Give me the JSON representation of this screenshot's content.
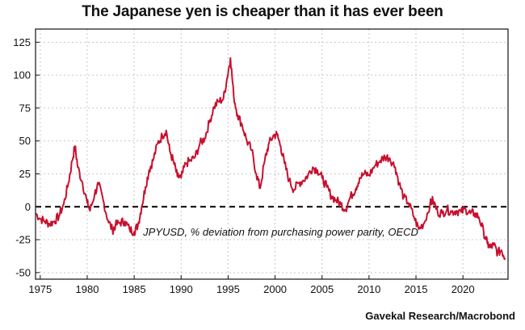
{
  "chart_data": {
    "type": "line",
    "title": "The Japanese yen is cheaper than it has ever been",
    "series_label": "JPYUSD, % deviation from purchasing power parity, OECD",
    "source": "Gavekal Research/Macrobond",
    "xlim": [
      1974.5,
      2024.8
    ],
    "ylim": [
      -55,
      135
    ],
    "xticks": [
      1975,
      1980,
      1985,
      1990,
      1995,
      2000,
      2005,
      2010,
      2015,
      2020
    ],
    "yticks": [
      125,
      100,
      75,
      50,
      25,
      0,
      -25,
      -50
    ],
    "reference_line": 0,
    "grid": true,
    "colors": {
      "series": "#c8102e",
      "reference": "#000000",
      "grid": "#c8c8c8"
    },
    "points": [
      [
        1974.5,
        -5
      ],
      [
        1975.0,
        -9
      ],
      [
        1975.5,
        -11
      ],
      [
        1976.0,
        -13
      ],
      [
        1976.5,
        -11
      ],
      [
        1977.0,
        -7
      ],
      [
        1977.5,
        2
      ],
      [
        1978.0,
        18
      ],
      [
        1978.4,
        35
      ],
      [
        1978.7,
        46
      ],
      [
        1979.0,
        30
      ],
      [
        1979.5,
        18
      ],
      [
        1980.0,
        3
      ],
      [
        1980.3,
        -3
      ],
      [
        1980.8,
        10
      ],
      [
        1981.2,
        17
      ],
      [
        1981.7,
        5
      ],
      [
        1982.2,
        -10
      ],
      [
        1982.7,
        -18
      ],
      [
        1983.0,
        -14
      ],
      [
        1983.5,
        -12
      ],
      [
        1984.0,
        -11
      ],
      [
        1984.5,
        -17
      ],
      [
        1985.0,
        -19
      ],
      [
        1985.4,
        -14
      ],
      [
        1985.8,
        0
      ],
      [
        1986.2,
        15
      ],
      [
        1986.6,
        28
      ],
      [
        1987.0,
        35
      ],
      [
        1987.5,
        48
      ],
      [
        1988.0,
        54
      ],
      [
        1988.4,
        58
      ],
      [
        1988.8,
        42
      ],
      [
        1989.2,
        34
      ],
      [
        1989.6,
        23
      ],
      [
        1990.0,
        22
      ],
      [
        1990.5,
        33
      ],
      [
        1991.0,
        35
      ],
      [
        1991.5,
        38
      ],
      [
        1992.0,
        48
      ],
      [
        1992.5,
        52
      ],
      [
        1993.0,
        64
      ],
      [
        1993.5,
        76
      ],
      [
        1994.0,
        80
      ],
      [
        1994.5,
        82
      ],
      [
        1994.9,
        98
      ],
      [
        1995.25,
        113
      ],
      [
        1995.6,
        84
      ],
      [
        1996.0,
        70
      ],
      [
        1996.5,
        62
      ],
      [
        1997.0,
        50
      ],
      [
        1997.5,
        43
      ],
      [
        1998.0,
        25
      ],
      [
        1998.4,
        14
      ],
      [
        1998.9,
        35
      ],
      [
        1999.3,
        47
      ],
      [
        1999.8,
        54
      ],
      [
        2000.2,
        55
      ],
      [
        2000.6,
        46
      ],
      [
        2001.0,
        33
      ],
      [
        2001.5,
        20
      ],
      [
        2002.0,
        13
      ],
      [
        2002.5,
        18
      ],
      [
        2003.0,
        20
      ],
      [
        2003.5,
        24
      ],
      [
        2004.0,
        30
      ],
      [
        2004.5,
        28
      ],
      [
        2005.0,
        22
      ],
      [
        2005.5,
        15
      ],
      [
        2006.0,
        8
      ],
      [
        2006.5,
        5
      ],
      [
        2007.0,
        2
      ],
      [
        2007.5,
        -2
      ],
      [
        2008.0,
        7
      ],
      [
        2008.6,
        14
      ],
      [
        2009.0,
        22
      ],
      [
        2009.5,
        25
      ],
      [
        2010.0,
        24
      ],
      [
        2010.6,
        31
      ],
      [
        2011.2,
        35
      ],
      [
        2011.7,
        38
      ],
      [
        2012.2,
        37
      ],
      [
        2012.8,
        30
      ],
      [
        2013.2,
        18
      ],
      [
        2013.7,
        7
      ],
      [
        2014.2,
        3
      ],
      [
        2014.8,
        -8
      ],
      [
        2015.3,
        -17
      ],
      [
        2015.9,
        -12
      ],
      [
        2016.5,
        2
      ],
      [
        2016.8,
        5
      ],
      [
        2017.3,
        -4
      ],
      [
        2017.8,
        -5
      ],
      [
        2018.3,
        -2
      ],
      [
        2018.8,
        -4
      ],
      [
        2019.3,
        -3
      ],
      [
        2019.8,
        -4
      ],
      [
        2020.3,
        -2
      ],
      [
        2020.8,
        -5
      ],
      [
        2021.2,
        -5
      ],
      [
        2021.7,
        -8
      ],
      [
        2022.2,
        -19
      ],
      [
        2022.6,
        -28
      ],
      [
        2022.9,
        -31
      ],
      [
        2023.3,
        -29
      ],
      [
        2023.7,
        -35
      ],
      [
        2024.1,
        -33
      ],
      [
        2024.5,
        -39
      ]
    ]
  }
}
